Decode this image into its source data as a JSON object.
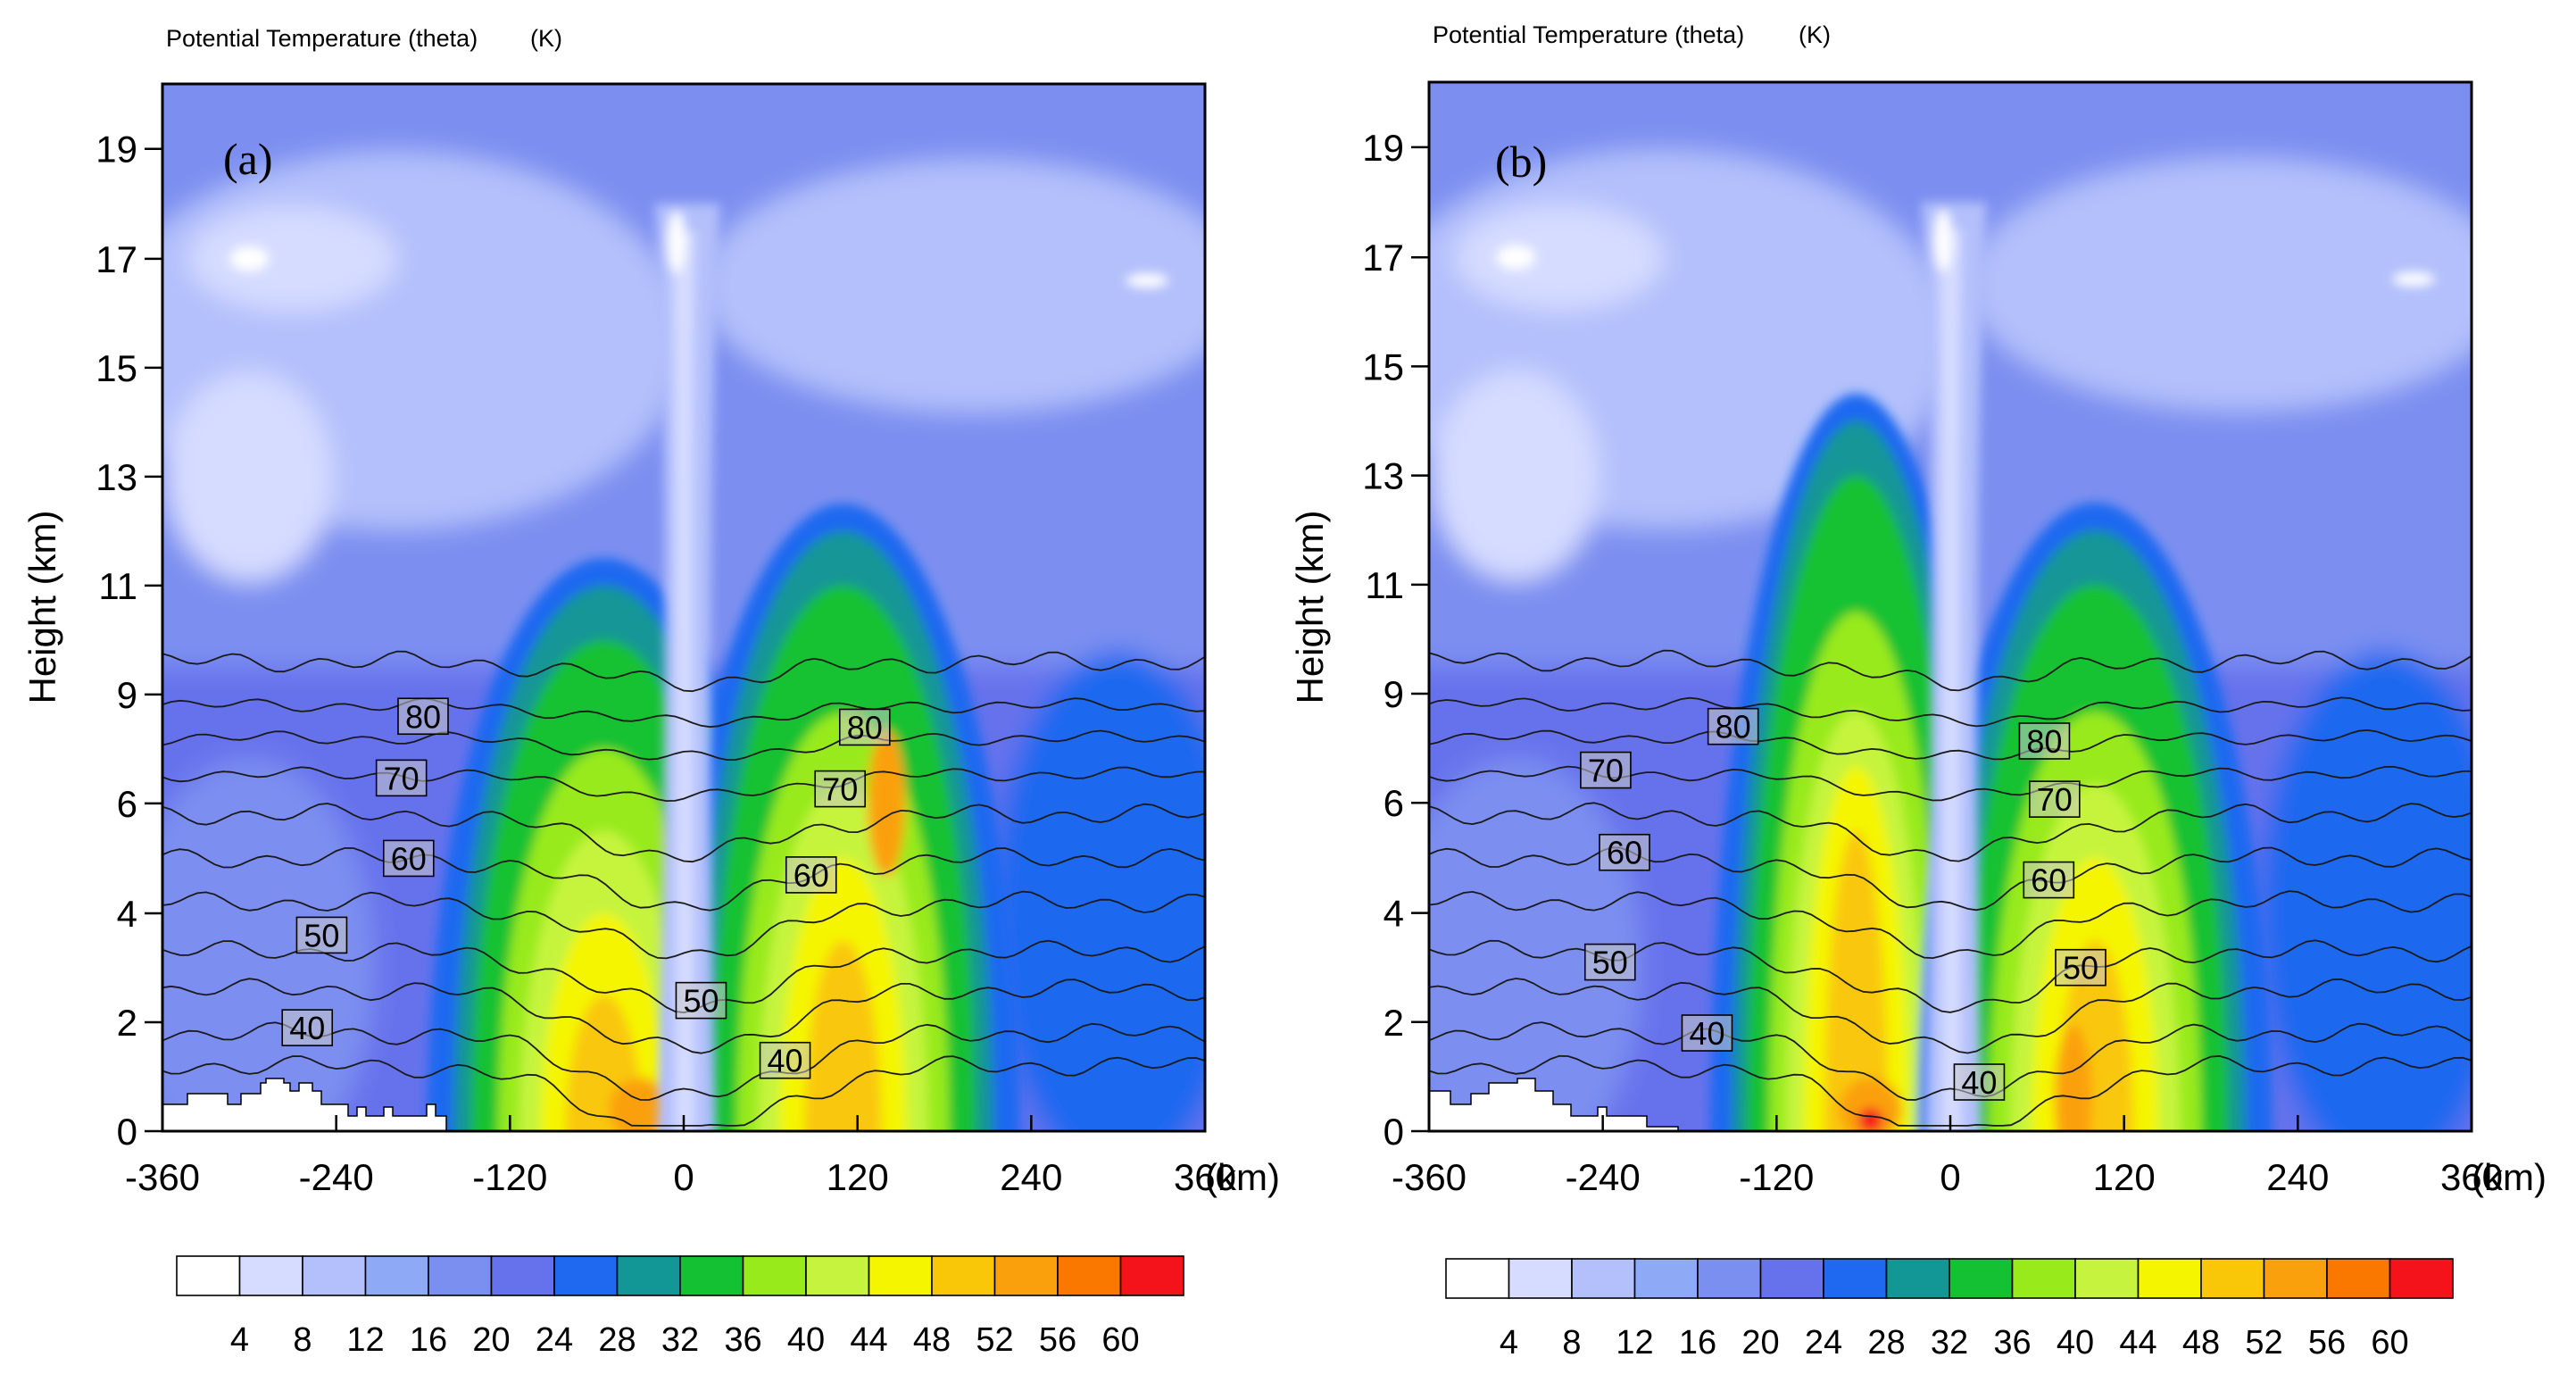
{
  "figure": {
    "panels": [
      {
        "id": "a",
        "title": "Potential Temperature (theta)",
        "units": "(K)",
        "label": "(a)"
      },
      {
        "id": "b",
        "title": "Potential Temperature (theta)",
        "units": "(K)",
        "label": "(b)"
      }
    ],
    "colorbar": {
      "ticks": [
        "4",
        "8",
        "12",
        "16",
        "20",
        "24",
        "28",
        "32",
        "36",
        "40",
        "44",
        "48",
        "52",
        "56",
        "60"
      ],
      "colors": [
        "#ffffff",
        "#d6dcff",
        "#b3c0fb",
        "#8eaaf7",
        "#7b8ff0",
        "#6672ec",
        "#1f69f0",
        "#139696",
        "#14c132",
        "#98ea1b",
        "#c6f43e",
        "#f5f500",
        "#f9c708",
        "#fba00d",
        "#fb7800",
        "#f4131b"
      ]
    }
  },
  "chart_data": [
    {
      "type": "heatmap",
      "panel": "a",
      "title": "Potential Temperature (theta)",
      "units": "(K)",
      "xlabel": "(km)",
      "ylabel": "Height (km)",
      "xlim": [
        -360,
        360
      ],
      "ylim": [
        0,
        20
      ],
      "xticks": [
        "-360",
        "-240",
        "-120",
        "0",
        "120",
        "240",
        "360"
      ],
      "yticks": [
        "0",
        "2",
        "4",
        "6",
        "9",
        "11",
        "13",
        "15",
        "17",
        "19"
      ],
      "field_levels": [
        4,
        8,
        12,
        16,
        20,
        24,
        28,
        32,
        36,
        40,
        44,
        48,
        52,
        56,
        60
      ],
      "contours": [
        {
          "text": "40",
          "value": 40,
          "x": -260,
          "y": 1.9
        },
        {
          "text": "50",
          "value": 50,
          "x": -250,
          "y": 3.6
        },
        {
          "text": "60",
          "value": 60,
          "x": -190,
          "y": 5.0
        },
        {
          "text": "70",
          "value": 70,
          "x": -195,
          "y": 6.7
        },
        {
          "text": "80",
          "value": 80,
          "x": -180,
          "y": 8.4
        },
        {
          "text": "50",
          "value": 50,
          "x": 12,
          "y": 2.4
        },
        {
          "text": "40",
          "value": 40,
          "x": 70,
          "y": 1.3
        },
        {
          "text": "60",
          "value": 60,
          "x": 88,
          "y": 4.7
        },
        {
          "text": "70",
          "value": 70,
          "x": 108,
          "y": 6.4
        },
        {
          "text": "80",
          "value": 80,
          "x": 125,
          "y": 8.1
        }
      ]
    },
    {
      "type": "heatmap",
      "panel": "b",
      "title": "Potential Temperature (theta)",
      "units": "(K)",
      "xlabel": "(km)",
      "ylabel": "Height (km)",
      "xlim": [
        -360,
        360
      ],
      "ylim": [
        0,
        20
      ],
      "xticks": [
        "-360",
        "-240",
        "-120",
        "0",
        "120",
        "240",
        "360"
      ],
      "yticks": [
        "0",
        "2",
        "4",
        "6",
        "9",
        "11",
        "13",
        "15",
        "17",
        "19"
      ],
      "field_levels": [
        4,
        8,
        12,
        16,
        20,
        24,
        28,
        32,
        36,
        40,
        44,
        48,
        52,
        56,
        60
      ],
      "contours": [
        {
          "text": "40",
          "value": 40,
          "x": -168,
          "y": 1.8
        },
        {
          "text": "50",
          "value": 50,
          "x": -235,
          "y": 3.1
        },
        {
          "text": "60",
          "value": 60,
          "x": -225,
          "y": 5.1
        },
        {
          "text": "70",
          "value": 70,
          "x": -238,
          "y": 6.9
        },
        {
          "text": "80",
          "value": 80,
          "x": -150,
          "y": 8.1
        },
        {
          "text": "40",
          "value": 40,
          "x": 20,
          "y": 0.9
        },
        {
          "text": "50",
          "value": 50,
          "x": 90,
          "y": 3.0
        },
        {
          "text": "60",
          "value": 60,
          "x": 68,
          "y": 4.6
        },
        {
          "text": "70",
          "value": 70,
          "x": 72,
          "y": 6.1
        },
        {
          "text": "80",
          "value": 80,
          "x": 65,
          "y": 7.7
        }
      ]
    }
  ]
}
